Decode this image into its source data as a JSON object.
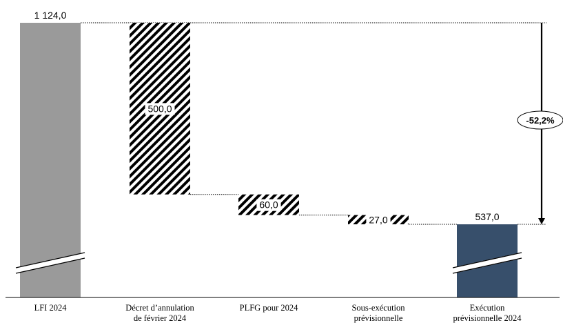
{
  "chart_data": {
    "type": "bar",
    "subtype": "waterfall",
    "categories": [
      [
        "LFI 2024"
      ],
      [
        "Décret d’annulation",
        "de février 2024"
      ],
      [
        "PLFG pour 2024"
      ],
      [
        "Sous-exécution",
        "prévisionnelle"
      ],
      [
        "Exécution",
        "prévisionnelle 2024"
      ]
    ],
    "values": [
      1124.0,
      -500.0,
      -60.0,
      -27.0,
      537.0
    ],
    "kinds": [
      "total",
      "decrease",
      "decrease",
      "decrease",
      "total"
    ],
    "data_labels": [
      "1 124,0",
      "500,0",
      "60,0",
      "27,0",
      "537,0"
    ],
    "change_label": "-52,2%",
    "axis_break": true,
    "colors": {
      "initial": "#9a9a9a",
      "final": "#374f6b",
      "hatch": "#000000"
    }
  }
}
